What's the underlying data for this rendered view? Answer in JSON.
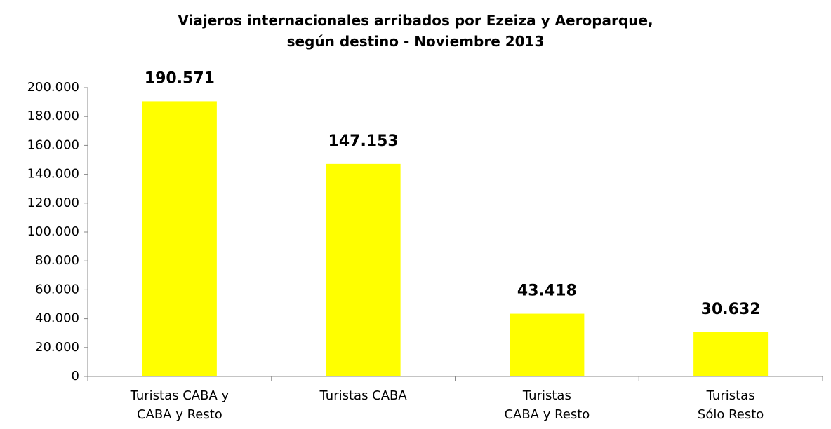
{
  "chart_data": {
    "type": "bar",
    "title": "Viajeros internacionales arribados por Ezeiza y Aeroparque,\nsegún destino - Noviembre 2013",
    "categories": [
      "Turistas CABA y\nCABA y Resto",
      "Turistas CABA",
      "Turistas\nCABA y Resto",
      "Turistas\nSólo Resto"
    ],
    "values": [
      190571,
      147153,
      43418,
      30632
    ],
    "value_labels": [
      "190.571",
      "147.153",
      "43.418",
      "30.632"
    ],
    "color": "#ffff00",
    "ylim": [
      0,
      200000
    ],
    "yticks": [
      0,
      {
        "value": 20000,
        "label": "20.000"
      },
      {
        "value": 40000,
        "label": "40.000"
      },
      {
        "value": 60000,
        "label": "60.000"
      },
      {
        "value": 80000,
        "label": "80.000"
      },
      {
        "value": 100000,
        "label": "100.000"
      },
      {
        "value": 120000,
        "label": "120.000"
      },
      {
        "value": 140000,
        "label": "140.000"
      },
      {
        "value": 160000,
        "label": "160.000"
      },
      {
        "value": 180000,
        "label": "180.000"
      },
      {
        "value": 200000,
        "label": "200.000"
      }
    ],
    "grid": false
  }
}
